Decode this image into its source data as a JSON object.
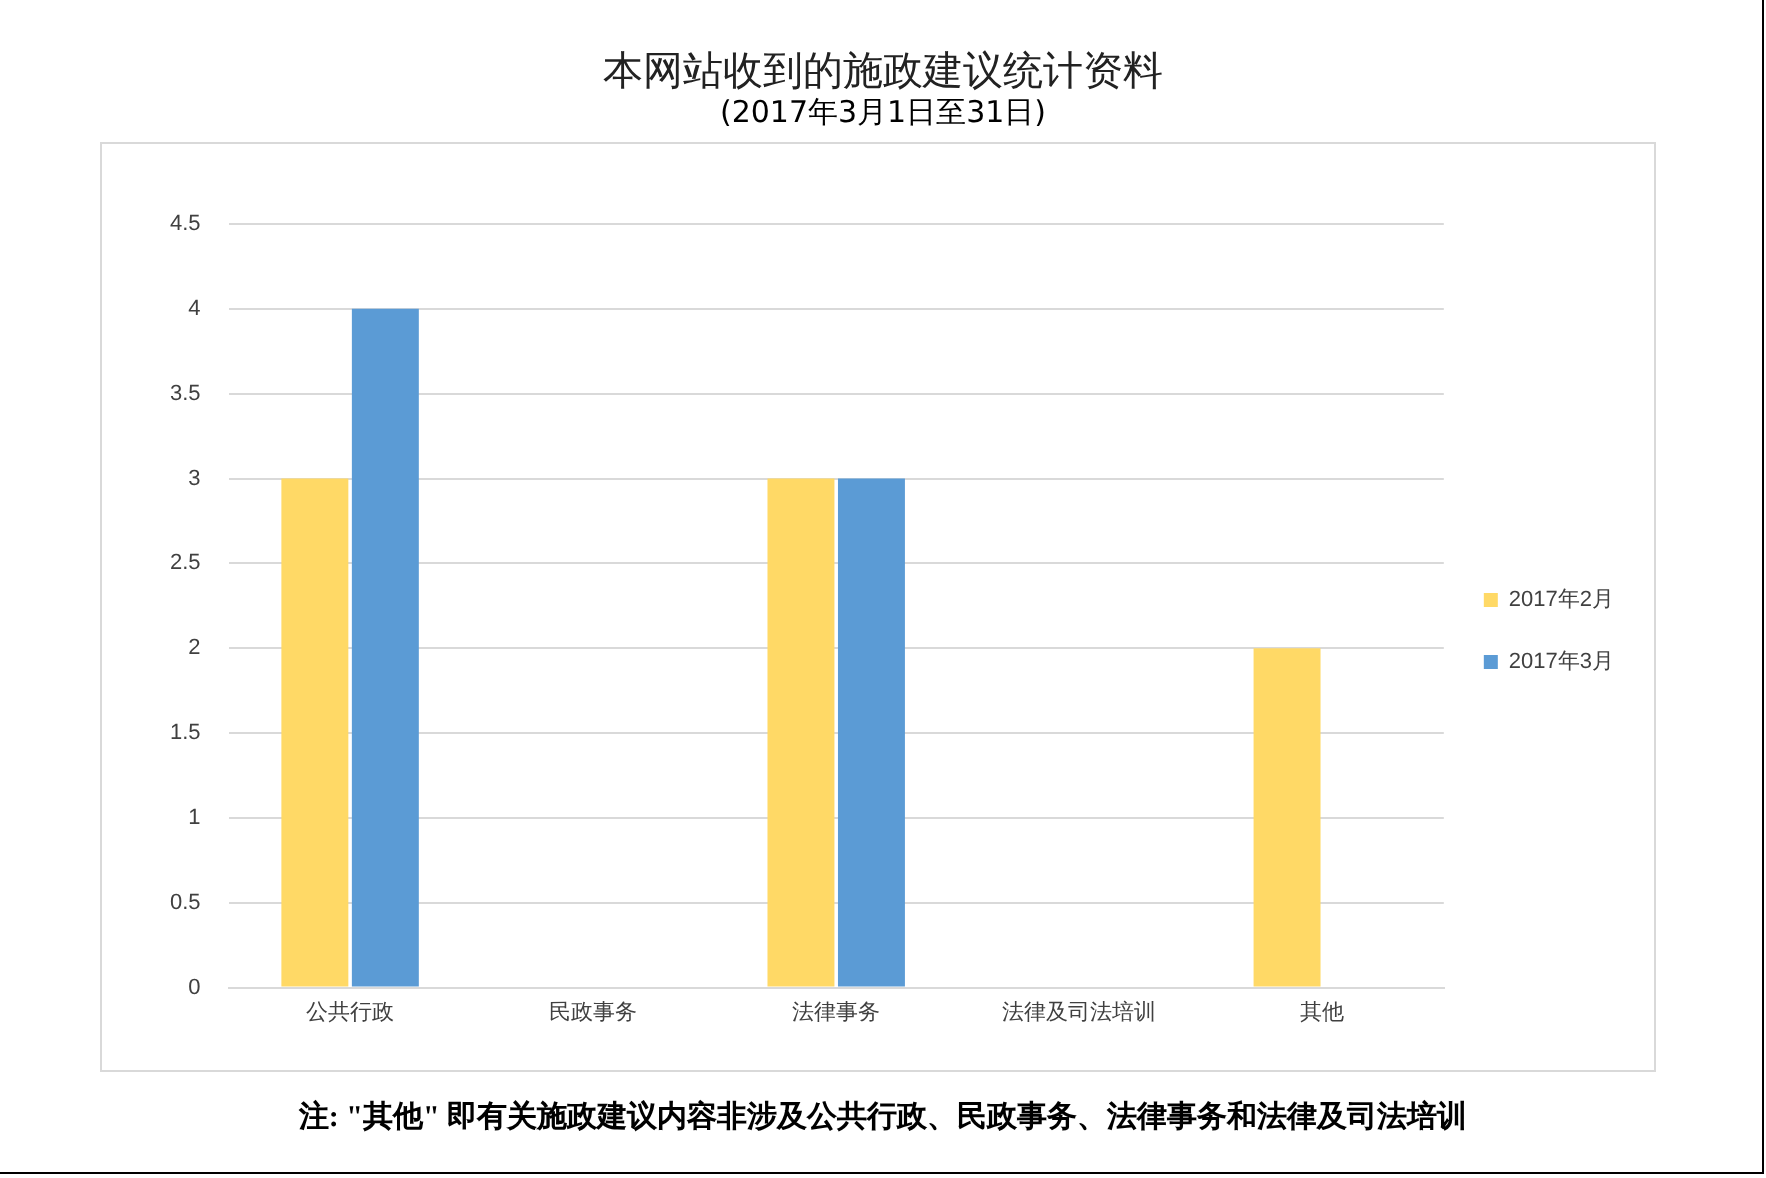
{
  "chart_data": {
    "type": "bar",
    "title": "本网站收到的施政建议统计资料",
    "subtitle": "(2017年3月1日至31日)",
    "categories": [
      "公共行政",
      "民政事务",
      "法律事务",
      "法律及司法培训",
      "其他"
    ],
    "series": [
      {
        "name": "2017年2月",
        "color": "#ffd966",
        "values": [
          3,
          0,
          3,
          0,
          2
        ]
      },
      {
        "name": "2017年3月",
        "color": "#5b9bd5",
        "values": [
          4,
          0,
          3,
          0,
          0
        ]
      }
    ],
    "ylim": [
      0,
      4.5
    ],
    "yticks": [
      0,
      0.5,
      1,
      1.5,
      2,
      2.5,
      3,
      3.5,
      4,
      4.5
    ],
    "grid": "y",
    "legend": "right",
    "annotations": [
      "注: \"其他\" 即有关施政建议内容非涉及公共行政、民政事务、法律事务和法律及司法培训"
    ]
  }
}
